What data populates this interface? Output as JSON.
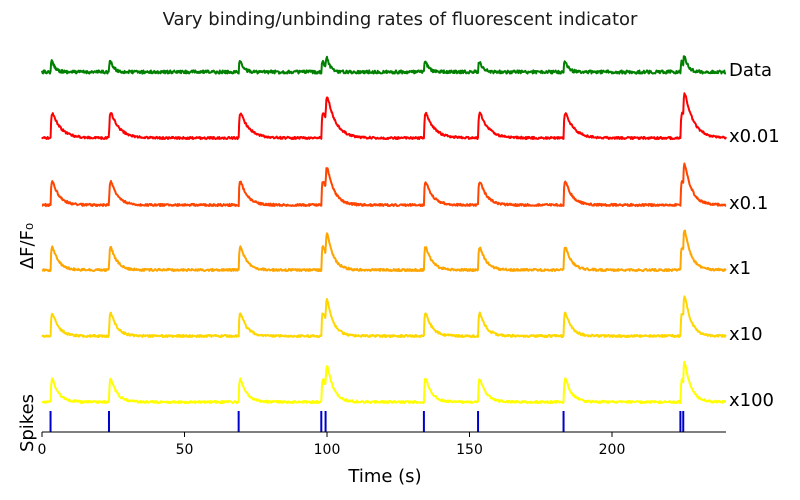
{
  "chart_data": {
    "type": "line",
    "title": "Vary binding/unbinding rates of fluorescent indicator",
    "xlabel": "Time (s)",
    "ylabel": "ΔF/F₀",
    "spikes_label": "Spikes",
    "xlim": [
      0,
      240
    ],
    "xticks": [
      0,
      50,
      100,
      150,
      200
    ],
    "grid": false,
    "legend": "none",
    "spike_times": [
      3,
      23.5,
      69,
      98,
      99.5,
      134,
      153,
      183,
      224,
      225
    ],
    "series": [
      {
        "name": "Data",
        "color": "#008000",
        "amplitude": 0.55,
        "decay": 1.2,
        "noise": 1.6
      },
      {
        "name": "x0.01",
        "color": "#ff0000",
        "amplitude": 1.0,
        "decay": 3.0,
        "noise": 1.1
      },
      {
        "name": "x0.1",
        "color": "#ff4500",
        "amplitude": 1.0,
        "decay": 2.4,
        "noise": 1.1
      },
      {
        "name": "x1",
        "color": "#ffa500",
        "amplitude": 1.0,
        "decay": 2.2,
        "noise": 1.1
      },
      {
        "name": "x10",
        "color": "#ffd700",
        "amplitude": 1.0,
        "decay": 2.2,
        "noise": 1.1
      },
      {
        "name": "x100",
        "color": "#ffff00",
        "amplitude": 1.0,
        "decay": 2.2,
        "noise": 1.1
      }
    ],
    "spike_color": "#0000cd"
  }
}
